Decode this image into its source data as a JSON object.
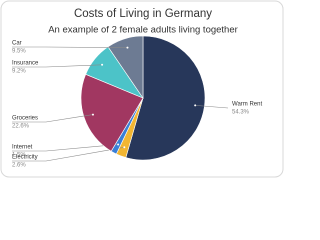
{
  "chart_data": {
    "type": "pie",
    "title": "Costs of Living in Germany",
    "subtitle": "An example of 2 female adults living together",
    "categories": [
      "Warm Rent",
      "Electricity",
      "Internet",
      "Groceries",
      "Insurance",
      "Car"
    ],
    "values": [
      54.3,
      2.6,
      1.5,
      22.6,
      9.2,
      9.5
    ],
    "value_labels": [
      "54.3%",
      "2.6%",
      "1.5%",
      "22.6%",
      "9.2%",
      "9.5%"
    ],
    "colors": [
      "#27375a",
      "#f2b632",
      "#3a7fd6",
      "#a13761",
      "#4cc3c8",
      "#6d7b93"
    ]
  }
}
